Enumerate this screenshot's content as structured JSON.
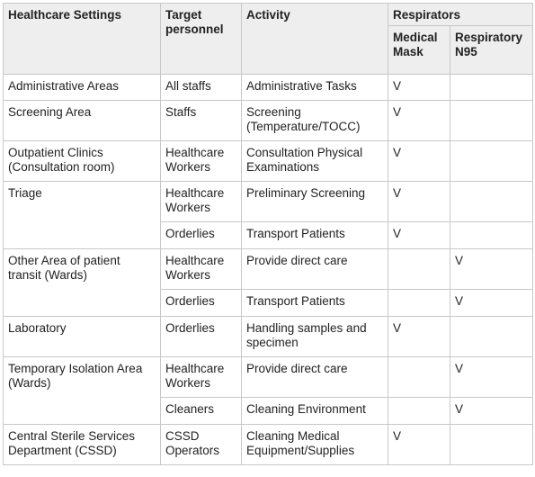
{
  "header": {
    "settings": "Healthcare Settings",
    "personnel_line1": "Target",
    "personnel_line2": "personnel",
    "activity": "Activity",
    "respirators": "Respirators",
    "medical_mask_line1": "Medical",
    "medical_mask_line2": "Mask",
    "n95_line1": "Respiratory",
    "n95_line2": "N95"
  },
  "rows": [
    {
      "setting": "Administrative Areas",
      "personnel": "All staffs",
      "activity": "Administrative Tasks",
      "mask": "V",
      "n95": ""
    },
    {
      "setting": "Screening Area",
      "personnel": "Staffs",
      "activity": "Screening (Temperature/TOCC)",
      "mask": "V",
      "n95": ""
    },
    {
      "setting": "Outpatient Clinics (Consultation room)",
      "personnel": "Healthcare Workers",
      "activity": "Consultation Physical Examinations",
      "mask": "V",
      "n95": ""
    },
    {
      "setting": "Triage",
      "personnel": "Healthcare Workers",
      "activity": "Preliminary Screening",
      "mask": "V",
      "n95": ""
    },
    {
      "setting": "",
      "personnel": "Orderlies",
      "activity": "Transport Patients",
      "mask": "V",
      "n95": ""
    },
    {
      "setting": "Other Area of patient transit (Wards)",
      "personnel": "Healthcare Workers",
      "activity": "Provide direct care",
      "mask": "",
      "n95": "V"
    },
    {
      "setting": "",
      "personnel": "Orderlies",
      "activity": "Transport Patients",
      "mask": "",
      "n95": "V"
    },
    {
      "setting": "Laboratory",
      "personnel": "Orderlies",
      "activity": "Handling samples and specimen",
      "mask": "V",
      "n95": ""
    },
    {
      "setting": "Temporary Isolation Area (Wards)",
      "personnel": "Healthcare Workers",
      "activity": "Provide direct care",
      "mask": "",
      "n95": "V"
    },
    {
      "setting": "",
      "personnel": "Cleaners",
      "activity": "Cleaning Environment",
      "mask": "",
      "n95": "V"
    },
    {
      "setting": "Central Sterile Services Department (CSSD)",
      "personnel": "CSSD Operators",
      "activity": "Cleaning Medical Equipment/Supplies",
      "mask": "V",
      "n95": ""
    }
  ]
}
